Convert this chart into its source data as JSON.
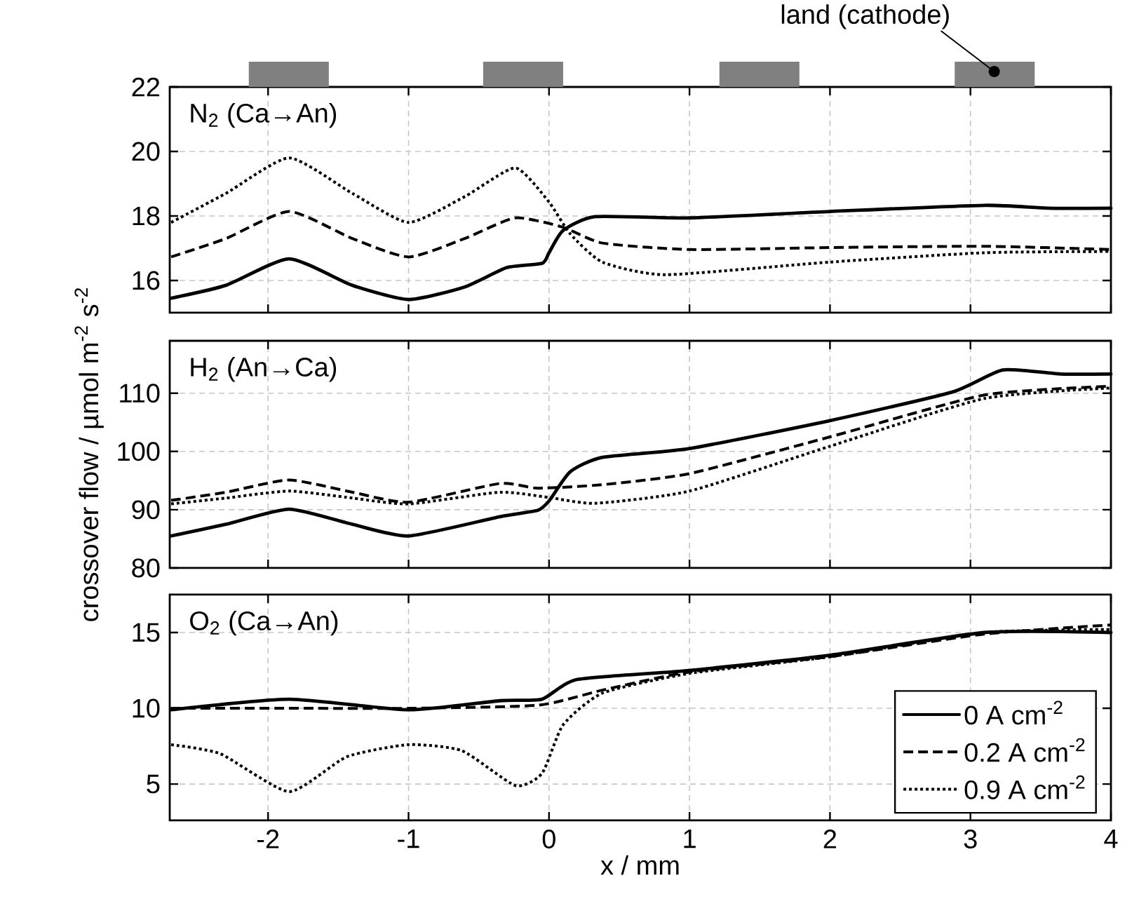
{
  "chart_data": [
    {
      "type": "line",
      "title": "N$_{2}$ (Ca→An)",
      "annotations": [
        "land (cathode)"
      ],
      "xlim": [
        -2.7,
        4.0
      ],
      "ylim": [
        15,
        22
      ],
      "xticks": [
        -2,
        -1,
        0,
        1,
        2,
        3,
        4
      ],
      "yticks": [
        16,
        18,
        20,
        22
      ],
      "tick_labels": "y",
      "grid": true,
      "series": [
        {
          "color": "#000000",
          "line_style": "solid",
          "x": [
            -2.69,
            -2.3,
            -1.85,
            -1.4,
            -1.0,
            -0.6,
            -0.3,
            -0.05,
            0,
            0.1,
            0.33,
            1,
            2,
            3.1,
            3.55,
            4
          ],
          "values": [
            15.45,
            15.85,
            16.67,
            15.85,
            15.41,
            15.8,
            16.4,
            16.53,
            16.86,
            17.55,
            17.98,
            17.94,
            18.14,
            18.33,
            18.24,
            18.24
          ]
        },
        {
          "color": "#000000",
          "line_style": "dashed",
          "x": [
            -2.69,
            -2.3,
            -1.85,
            -1.4,
            -1.0,
            -0.6,
            -0.24,
            0.1,
            0.38,
            1,
            2,
            3.1,
            4
          ],
          "values": [
            16.73,
            17.3,
            18.14,
            17.3,
            16.73,
            17.3,
            17.94,
            17.65,
            17.16,
            16.96,
            17.02,
            17.06,
            16.96
          ]
        },
        {
          "color": "#000000",
          "line_style": "dotted",
          "x": [
            -2.69,
            -2.3,
            -1.85,
            -1.4,
            -1.0,
            -0.6,
            -0.24,
            0,
            0.15,
            0.38,
            0.83,
            2,
            3.1,
            4
          ],
          "values": [
            17.8,
            18.7,
            19.8,
            18.7,
            17.8,
            18.6,
            19.49,
            18.43,
            17.45,
            16.57,
            16.18,
            16.57,
            16.86,
            16.9
          ]
        }
      ]
    },
    {
      "type": "line",
      "title": "H$_{2}$ (An→Ca)",
      "ylabel": "crossover flow / µmol m$^{-2}$ s$^{-2}$",
      "xlim": [
        -2.7,
        4.0
      ],
      "ylim": [
        80,
        119
      ],
      "xticks": [
        -2,
        -1,
        0,
        1,
        2,
        3,
        4
      ],
      "yticks": [
        80,
        90,
        100,
        110
      ],
      "tick_labels": "y",
      "grid": true,
      "series": [
        {
          "color": "#000000",
          "line_style": "solid",
          "x": [
            -2.69,
            -2.3,
            -1.85,
            -1.4,
            -1.0,
            -0.35,
            -0.08,
            0,
            0.15,
            0.38,
            1,
            2,
            2.87,
            3.23,
            3.64,
            4
          ],
          "values": [
            85.5,
            87.5,
            90.1,
            87.5,
            85.5,
            88.8,
            89.9,
            91.5,
            96.5,
            99.0,
            100.5,
            105.3,
            110.2,
            114.0,
            113.3,
            113.3
          ]
        },
        {
          "color": "#000000",
          "line_style": "dashed",
          "x": [
            -2.69,
            -2.3,
            -1.85,
            -1.4,
            -1.0,
            -0.35,
            -0.08,
            0.38,
            1,
            2,
            3.1,
            4
          ],
          "values": [
            91.6,
            93.0,
            95.1,
            93.0,
            91.3,
            94.5,
            93.7,
            94.3,
            96.2,
            102.5,
            109.7,
            111.2
          ]
        },
        {
          "color": "#000000",
          "line_style": "dotted",
          "x": [
            -2.69,
            -2.3,
            -1.85,
            -1.4,
            -1.0,
            -0.35,
            0,
            0.33,
            1,
            2,
            3.1,
            4
          ],
          "values": [
            91.0,
            92.0,
            93.2,
            92.0,
            91.0,
            93.0,
            92.1,
            91.1,
            93.2,
            100.9,
            109.1,
            110.9
          ]
        }
      ]
    },
    {
      "type": "line",
      "title": "O$_{2}$ (Ca→An)",
      "xlabel": "x / mm",
      "xlim": [
        -2.7,
        4.0
      ],
      "ylim": [
        2.6,
        17.5
      ],
      "xticks": [
        -2,
        -1,
        0,
        1,
        2,
        3,
        4
      ],
      "yticks": [
        5,
        10,
        15
      ],
      "grid": true,
      "legend": "bottom right",
      "series": [
        {
          "name": "0 A cm$^{-2}$",
          "color": "#000000",
          "line_style": "solid",
          "x": [
            -2.69,
            -1.85,
            -1.0,
            -0.35,
            -0.05,
            0.2,
            1,
            2,
            3.1,
            4
          ],
          "values": [
            9.9,
            10.6,
            9.9,
            10.5,
            10.6,
            11.9,
            12.5,
            13.5,
            15.0,
            15.0
          ]
        },
        {
          "name": "0.2 A cm$^{-2}$",
          "color": "#000000",
          "line_style": "dashed",
          "x": [
            -2.69,
            -1.85,
            -1.0,
            -0.08,
            0.38,
            1,
            2,
            3.1,
            4
          ],
          "values": [
            10.0,
            10.0,
            10.0,
            10.2,
            11.2,
            12.4,
            13.4,
            14.9,
            15.5
          ]
        },
        {
          "name": "0.9 A cm$^{-2}$",
          "color": "#000000",
          "line_style": "dotted",
          "x": [
            -2.69,
            -2.34,
            -1.85,
            -1.44,
            -1.0,
            -0.62,
            -0.24,
            -0.05,
            0.1,
            0.38,
            1,
            2,
            3.1,
            4
          ],
          "values": [
            7.6,
            7.0,
            4.5,
            6.8,
            7.6,
            7.2,
            4.9,
            5.7,
            8.9,
            11.0,
            12.3,
            13.4,
            15.0,
            15.2
          ]
        }
      ]
    }
  ]
}
